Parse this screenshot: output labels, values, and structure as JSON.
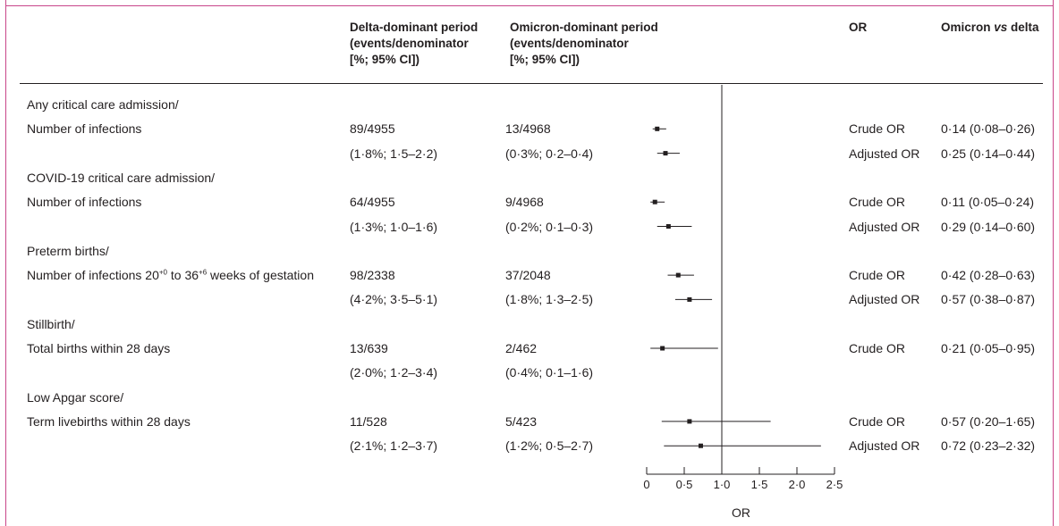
{
  "headers": {
    "delta": [
      "Delta-dominant period",
      "(events/denominator",
      "[%; 95% CI])"
    ],
    "omicron": [
      "Omicron-dominant period",
      "(events/denominator",
      "[%; 95% CI])"
    ],
    "or": "OR",
    "omicron_vs_delta_prefix": "Omicron ",
    "omicron_vs_delta_italic": "vs",
    "omicron_vs_delta_suffix": " delta"
  },
  "rows": [
    {
      "label": "Any critical care admission/",
      "delta": "",
      "omicron": "",
      "or_type": "",
      "estimate": ""
    },
    {
      "label": "Number of infections",
      "delta": "89/4955",
      "omicron": "13/4968",
      "or_type": "Crude OR",
      "estimate": "0·14 (0·08–0·26)"
    },
    {
      "label": "",
      "delta": "(1·8%; 1·5–2·2)",
      "omicron": "(0·3%; 0·2–0·4)",
      "or_type": "Adjusted OR",
      "estimate": "0·25 (0·14–0·44)"
    },
    {
      "label": "COVID-19 critical care admission/",
      "delta": "",
      "omicron": "",
      "or_type": "",
      "estimate": ""
    },
    {
      "label": "Number of infections",
      "delta": "64/4955",
      "omicron": "9/4968",
      "or_type": "Crude OR",
      "estimate": "0·11 (0·05–0·24)"
    },
    {
      "label": "",
      "delta": "(1·3%; 1·0–1·6)",
      "omicron": "(0·2%; 0·1–0·3)",
      "or_type": "Adjusted OR",
      "estimate": "0·29 (0·14–0·60)"
    },
    {
      "label": "Preterm births/",
      "delta": "",
      "omicron": "",
      "or_type": "",
      "estimate": ""
    },
    {
      "label": "Number of infections 20",
      "label_sup1": "+0",
      "label_mid": " to 36",
      "label_sup2": "+6",
      "label_end": " weeks of gestation",
      "delta": "98/2338",
      "omicron": "37/2048",
      "or_type": "Crude OR",
      "estimate": "0·42 (0·28–0·63)"
    },
    {
      "label": "",
      "delta": "(4·2%; 3·5–5·1)",
      "omicron": "(1·8%; 1·3–2·5)",
      "or_type": "Adjusted OR",
      "estimate": "0·57 (0·38–0·87)"
    },
    {
      "label": "Stillbirth/",
      "delta": "",
      "omicron": "",
      "or_type": "",
      "estimate": ""
    },
    {
      "label": "Total births within 28 days",
      "delta": "13/639",
      "omicron": "2/462",
      "or_type": "Crude OR",
      "estimate": "0·21 (0·05–0·95)"
    },
    {
      "label": "",
      "delta": "(2·0%; 1·2–3·4)",
      "omicron": "(0·4%; 0·1–1·6)",
      "or_type": "",
      "estimate": ""
    },
    {
      "label": "Low Apgar score/",
      "delta": "",
      "omicron": "",
      "or_type": "",
      "estimate": ""
    },
    {
      "label": "Term livebirths within 28 days",
      "delta": "11/528",
      "omicron": "5/423",
      "or_type": "Crude OR",
      "estimate": "0·57 (0·20–1·65)"
    },
    {
      "label": "",
      "delta": "(2·1%; 1·2–3·7)",
      "omicron": "(1·2%; 0·5–2·7)",
      "or_type": "Adjusted OR",
      "estimate": "0·72 (0·23–2·32)"
    }
  ],
  "chart_data": {
    "type": "forest",
    "xlabel": "OR",
    "xlim": [
      0,
      2.5
    ],
    "ticks": [
      0,
      0.5,
      1.0,
      1.5,
      2.0,
      2.5
    ],
    "tick_labels": [
      "0",
      "0·5",
      "1·0",
      "1·5",
      "2·0",
      "2·5"
    ],
    "reference_line": 1.0,
    "points": [
      {
        "row": 1,
        "or": 0.14,
        "lo": 0.08,
        "hi": 0.26
      },
      {
        "row": 2,
        "or": 0.25,
        "lo": 0.14,
        "hi": 0.44
      },
      {
        "row": 4,
        "or": 0.11,
        "lo": 0.05,
        "hi": 0.24
      },
      {
        "row": 5,
        "or": 0.29,
        "lo": 0.14,
        "hi": 0.6
      },
      {
        "row": 7,
        "or": 0.42,
        "lo": 0.28,
        "hi": 0.63
      },
      {
        "row": 8,
        "or": 0.57,
        "lo": 0.38,
        "hi": 0.87
      },
      {
        "row": 10,
        "or": 0.21,
        "lo": 0.05,
        "hi": 0.95
      },
      {
        "row": 13,
        "or": 0.57,
        "lo": 0.2,
        "hi": 1.65
      },
      {
        "row": 14,
        "or": 0.72,
        "lo": 0.23,
        "hi": 2.32
      }
    ]
  },
  "colors": {
    "frame": "#c8468a",
    "ink": "#231f20"
  }
}
